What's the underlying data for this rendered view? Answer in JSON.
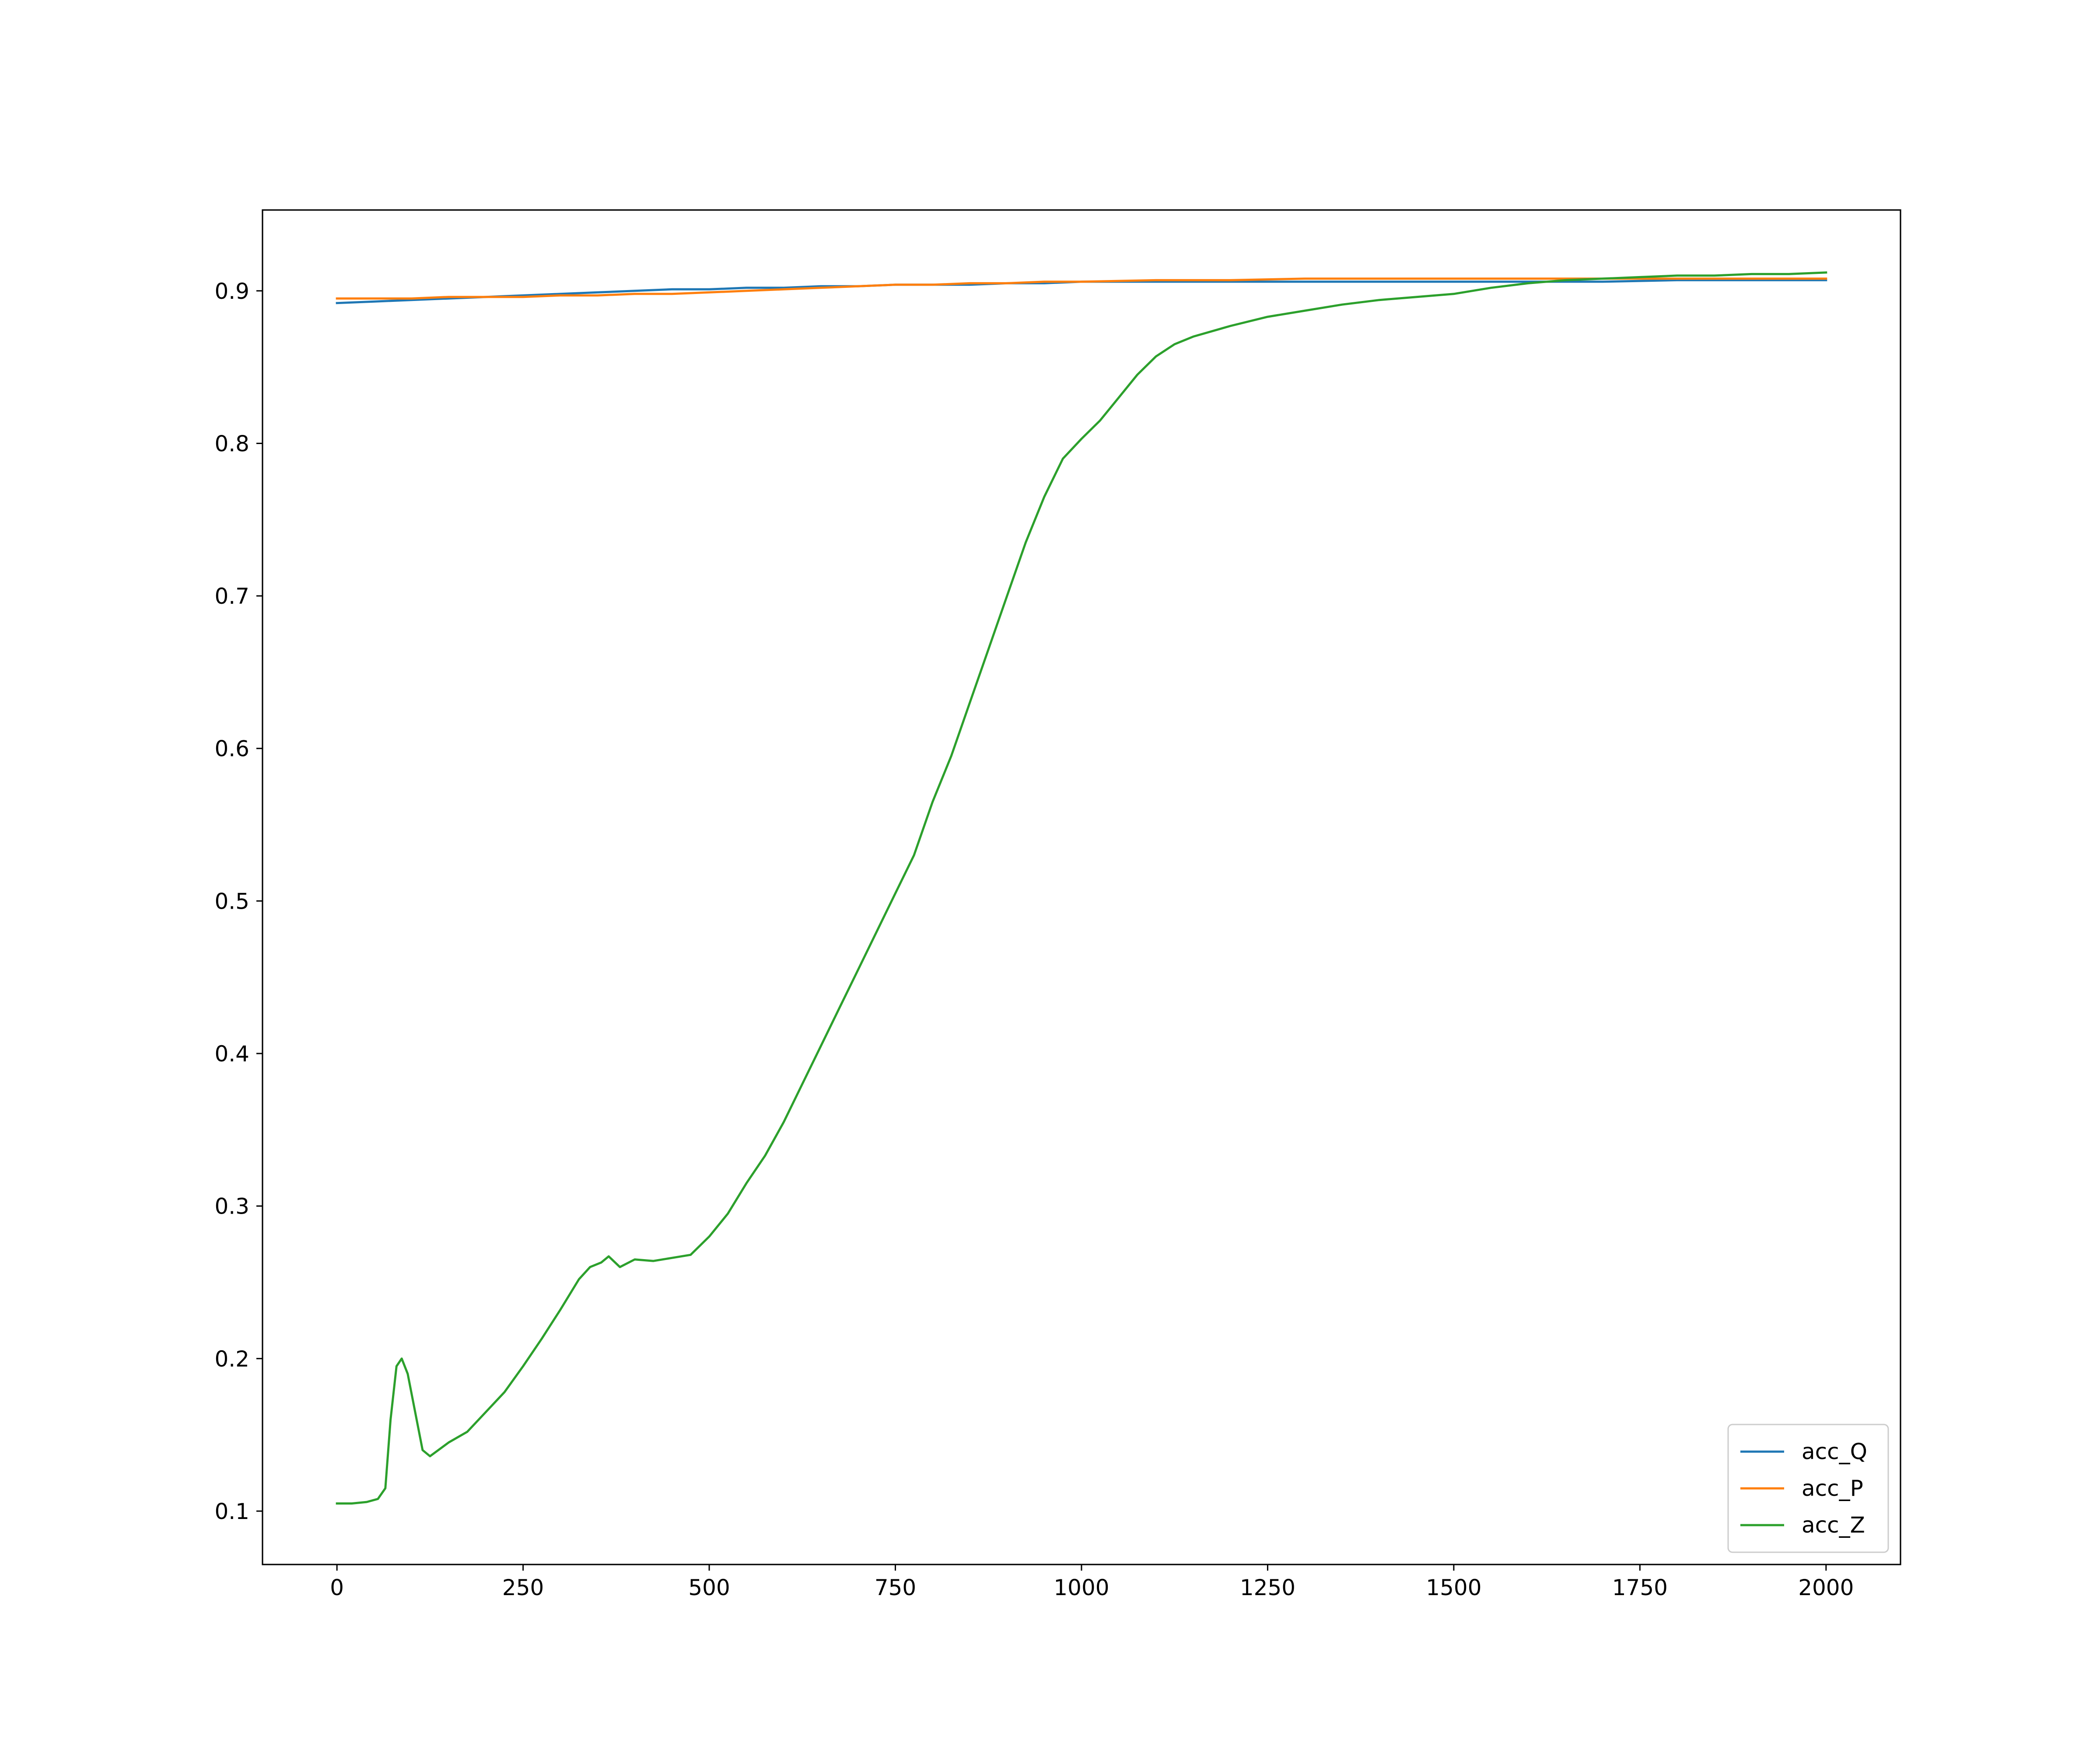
{
  "chart_data": {
    "type": "line",
    "title": "",
    "xlabel": "",
    "ylabel": "",
    "xlim": [
      -100,
      2100
    ],
    "ylim": [
      0.065,
      0.953
    ],
    "grid": false,
    "legend_position": "lower right",
    "x_ticks": [
      0,
      250,
      500,
      750,
      1000,
      1250,
      1500,
      1750,
      2000
    ],
    "x_tick_labels": [
      "0",
      "250",
      "500",
      "750",
      "1000",
      "1250",
      "1500",
      "1750",
      "2000"
    ],
    "y_ticks": [
      0.1,
      0.2,
      0.3,
      0.4,
      0.5,
      0.6,
      0.7,
      0.8,
      0.9
    ],
    "y_tick_labels": [
      "0.1",
      "0.2",
      "0.3",
      "0.4",
      "0.5",
      "0.6",
      "0.7",
      "0.8",
      "0.9"
    ],
    "series": [
      {
        "name": "acc_Q",
        "color": "#1f77b4",
        "x": [
          0,
          50,
          100,
          150,
          200,
          250,
          300,
          350,
          400,
          450,
          500,
          550,
          600,
          650,
          700,
          750,
          800,
          850,
          900,
          950,
          1000,
          1100,
          1200,
          1300,
          1400,
          1500,
          1600,
          1700,
          1800,
          1900,
          2000
        ],
        "y": [
          0.892,
          0.893,
          0.894,
          0.895,
          0.896,
          0.897,
          0.898,
          0.899,
          0.9,
          0.901,
          0.901,
          0.902,
          0.902,
          0.903,
          0.903,
          0.904,
          0.904,
          0.904,
          0.905,
          0.905,
          0.906,
          0.906,
          0.906,
          0.906,
          0.906,
          0.906,
          0.906,
          0.906,
          0.907,
          0.907,
          0.907
        ]
      },
      {
        "name": "acc_P",
        "color": "#ff7f0e",
        "x": [
          0,
          50,
          100,
          150,
          200,
          250,
          300,
          350,
          400,
          450,
          500,
          550,
          600,
          650,
          700,
          750,
          800,
          850,
          900,
          950,
          1000,
          1100,
          1200,
          1300,
          1400,
          1500,
          1600,
          1700,
          1800,
          1900,
          2000
        ],
        "y": [
          0.895,
          0.895,
          0.895,
          0.896,
          0.896,
          0.896,
          0.897,
          0.897,
          0.898,
          0.898,
          0.899,
          0.9,
          0.901,
          0.902,
          0.903,
          0.904,
          0.904,
          0.905,
          0.905,
          0.906,
          0.906,
          0.907,
          0.907,
          0.908,
          0.908,
          0.908,
          0.908,
          0.908,
          0.908,
          0.908,
          0.908
        ]
      },
      {
        "name": "acc_Z",
        "color": "#2ca02c",
        "x": [
          0,
          20,
          40,
          55,
          65,
          72,
          80,
          87,
          95,
          105,
          115,
          125,
          150,
          175,
          200,
          225,
          250,
          275,
          300,
          325,
          340,
          355,
          365,
          380,
          400,
          425,
          450,
          475,
          500,
          525,
          550,
          575,
          600,
          625,
          650,
          675,
          700,
          725,
          750,
          775,
          800,
          825,
          850,
          875,
          900,
          925,
          950,
          975,
          1000,
          1025,
          1050,
          1075,
          1100,
          1125,
          1150,
          1200,
          1250,
          1300,
          1350,
          1400,
          1450,
          1500,
          1550,
          1600,
          1650,
          1700,
          1750,
          1800,
          1850,
          1900,
          1950,
          2000
        ],
        "y": [
          0.105,
          0.105,
          0.106,
          0.108,
          0.115,
          0.16,
          0.195,
          0.2,
          0.19,
          0.165,
          0.14,
          0.136,
          0.145,
          0.152,
          0.165,
          0.178,
          0.195,
          0.213,
          0.232,
          0.252,
          0.26,
          0.263,
          0.267,
          0.26,
          0.265,
          0.264,
          0.266,
          0.268,
          0.28,
          0.295,
          0.315,
          0.333,
          0.355,
          0.38,
          0.405,
          0.43,
          0.455,
          0.48,
          0.505,
          0.53,
          0.565,
          0.595,
          0.63,
          0.665,
          0.7,
          0.735,
          0.765,
          0.79,
          0.803,
          0.815,
          0.83,
          0.845,
          0.857,
          0.865,
          0.87,
          0.877,
          0.883,
          0.887,
          0.891,
          0.894,
          0.896,
          0.898,
          0.902,
          0.905,
          0.907,
          0.908,
          0.909,
          0.91,
          0.91,
          0.911,
          0.911,
          0.912
        ]
      }
    ]
  }
}
